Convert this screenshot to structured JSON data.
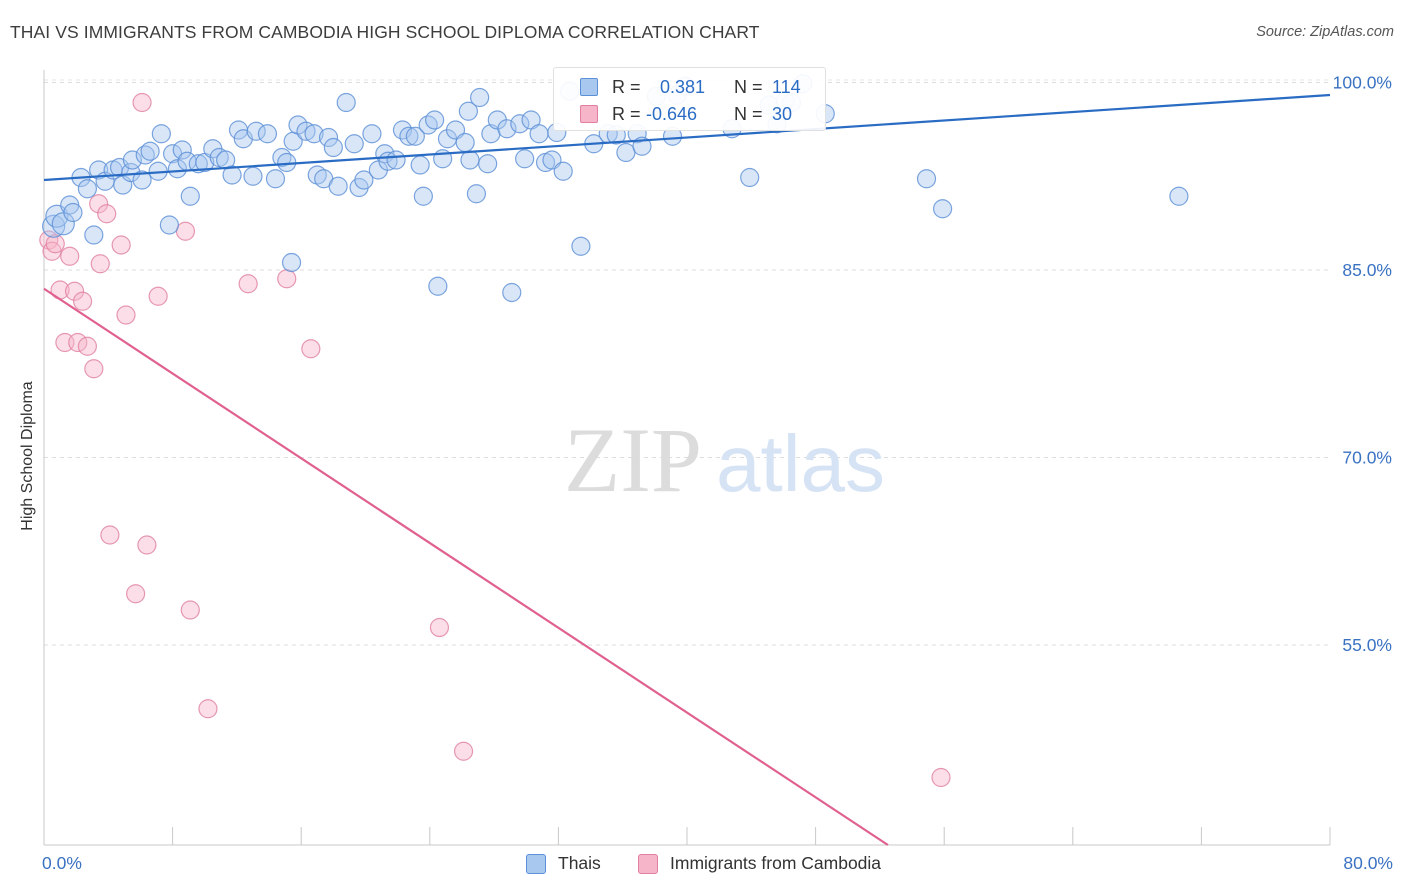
{
  "title": "THAI VS IMMIGRANTS FROM CAMBODIA HIGH SCHOOL DIPLOMA CORRELATION CHART",
  "source": "Source: ZipAtlas.com",
  "watermark": {
    "zip": "ZIP",
    "atlas": "atlas"
  },
  "legend": {
    "r_label": "R =",
    "n_label": "N =",
    "rows": [
      {
        "r": "0.381",
        "n": "114",
        "color": "#a9c8ef",
        "border": "#5b8fd6"
      },
      {
        "r": "-0.646",
        "n": "30",
        "color": "#f6b5c9",
        "border": "#e07fa0"
      }
    ]
  },
  "chart_data": {
    "type": "scatter",
    "xlabel": "",
    "ylabel": "High School Diploma",
    "xlim": [
      0,
      80
    ],
    "ylim": [
      39,
      101
    ],
    "x_tick_labels": [
      "0.0%",
      "80.0%"
    ],
    "y_ticks": [
      55,
      70,
      85,
      100
    ],
    "y_tick_labels": [
      "55.0%",
      "70.0%",
      "85.0%",
      "100.0%"
    ],
    "grid": "horizontal dashed",
    "legend_placement": "bottom-center",
    "series": [
      {
        "name": "Thais",
        "color": "#a9c8ef",
        "stroke": "#5b8fd6",
        "trend": {
          "x": [
            0,
            80
          ],
          "y": [
            92.2,
            99.0
          ],
          "color": "#2a6cc4"
        },
        "points": [
          [
            0.6,
            88.5
          ],
          [
            0.8,
            89.3
          ],
          [
            1.2,
            88.7
          ],
          [
            1.6,
            90.2
          ],
          [
            1.8,
            89.6
          ],
          [
            2.3,
            92.4
          ],
          [
            2.7,
            91.5
          ],
          [
            3.1,
            87.8
          ],
          [
            3.4,
            93.0
          ],
          [
            3.8,
            92.1
          ],
          [
            4.3,
            93.0
          ],
          [
            4.7,
            93.2
          ],
          [
            4.9,
            91.8
          ],
          [
            5.4,
            92.8
          ],
          [
            5.5,
            93.8
          ],
          [
            6.1,
            92.2
          ],
          [
            6.3,
            94.2
          ],
          [
            6.6,
            94.5
          ],
          [
            7.1,
            92.9
          ],
          [
            7.3,
            95.9
          ],
          [
            7.8,
            88.6
          ],
          [
            8.0,
            94.3
          ],
          [
            8.3,
            93.1
          ],
          [
            8.6,
            94.6
          ],
          [
            8.9,
            93.7
          ],
          [
            9.1,
            90.9
          ],
          [
            9.6,
            93.5
          ],
          [
            10.0,
            93.6
          ],
          [
            10.5,
            94.7
          ],
          [
            10.9,
            94.0
          ],
          [
            11.3,
            93.8
          ],
          [
            11.7,
            92.6
          ],
          [
            12.1,
            96.2
          ],
          [
            12.4,
            95.5
          ],
          [
            13.0,
            92.5
          ],
          [
            13.2,
            96.1
          ],
          [
            13.9,
            95.9
          ],
          [
            14.4,
            92.3
          ],
          [
            14.8,
            94.0
          ],
          [
            15.1,
            93.6
          ],
          [
            15.5,
            95.3
          ],
          [
            15.4,
            85.6
          ],
          [
            15.8,
            96.6
          ],
          [
            16.3,
            96.1
          ],
          [
            16.8,
            95.9
          ],
          [
            17.0,
            92.6
          ],
          [
            17.4,
            92.3
          ],
          [
            17.7,
            95.6
          ],
          [
            18.0,
            94.8
          ],
          [
            18.3,
            91.7
          ],
          [
            18.8,
            98.4
          ],
          [
            19.3,
            95.1
          ],
          [
            19.6,
            91.6
          ],
          [
            19.9,
            92.2
          ],
          [
            20.4,
            95.9
          ],
          [
            20.8,
            93.0
          ],
          [
            21.2,
            94.3
          ],
          [
            21.4,
            93.7
          ],
          [
            21.9,
            93.8
          ],
          [
            22.3,
            96.2
          ],
          [
            22.7,
            95.7
          ],
          [
            23.1,
            95.7
          ],
          [
            23.4,
            93.4
          ],
          [
            23.6,
            90.9
          ],
          [
            23.9,
            96.6
          ],
          [
            24.3,
            97.0
          ],
          [
            24.5,
            83.7
          ],
          [
            24.8,
            93.9
          ],
          [
            25.1,
            95.5
          ],
          [
            25.6,
            96.2
          ],
          [
            26.2,
            95.2
          ],
          [
            26.4,
            97.7
          ],
          [
            26.5,
            93.8
          ],
          [
            26.9,
            91.1
          ],
          [
            27.1,
            98.8
          ],
          [
            27.6,
            93.5
          ],
          [
            27.8,
            95.9
          ],
          [
            28.2,
            97.0
          ],
          [
            28.8,
            96.3
          ],
          [
            29.1,
            83.2
          ],
          [
            29.6,
            96.7
          ],
          [
            29.9,
            93.9
          ],
          [
            30.3,
            97.0
          ],
          [
            30.8,
            95.9
          ],
          [
            31.2,
            93.6
          ],
          [
            31.6,
            93.8
          ],
          [
            31.9,
            96.0
          ],
          [
            32.3,
            92.9
          ],
          [
            32.7,
            99.3
          ],
          [
            33.4,
            86.9
          ],
          [
            34.2,
            95.1
          ],
          [
            35.1,
            95.9
          ],
          [
            35.6,
            95.8
          ],
          [
            36.2,
            94.4
          ],
          [
            36.9,
            95.9
          ],
          [
            37.2,
            94.9
          ],
          [
            38.1,
            98.9
          ],
          [
            39.1,
            95.7
          ],
          [
            39.4,
            99.0
          ],
          [
            39.9,
            99.7
          ],
          [
            42.8,
            96.3
          ],
          [
            43.9,
            92.4
          ],
          [
            45.1,
            98.2
          ],
          [
            45.6,
            96.7
          ],
          [
            46.1,
            98.5
          ],
          [
            46.5,
            98.4
          ],
          [
            47.2,
            99.9
          ],
          [
            48.6,
            97.5
          ],
          [
            54.9,
            92.3
          ],
          [
            55.9,
            89.9
          ],
          [
            70.6,
            90.9
          ]
        ]
      },
      {
        "name": "Immigrants from Cambodia",
        "color": "#f6b5c9",
        "stroke": "#e07fa0",
        "trend": {
          "x": [
            0,
            52.5
          ],
          "y": [
            83.5,
            39.0
          ],
          "color": "#e0608f"
        },
        "points": [
          [
            0.3,
            87.4
          ],
          [
            0.5,
            86.5
          ],
          [
            0.7,
            87.1
          ],
          [
            1.0,
            83.4
          ],
          [
            1.3,
            79.2
          ],
          [
            1.6,
            86.1
          ],
          [
            1.9,
            83.3
          ],
          [
            2.1,
            79.2
          ],
          [
            2.4,
            82.5
          ],
          [
            2.7,
            78.9
          ],
          [
            3.1,
            77.1
          ],
          [
            3.4,
            90.3
          ],
          [
            3.5,
            85.5
          ],
          [
            3.9,
            89.5
          ],
          [
            4.1,
            63.8
          ],
          [
            4.8,
            87.0
          ],
          [
            5.1,
            81.4
          ],
          [
            5.7,
            59.1
          ],
          [
            6.1,
            98.4
          ],
          [
            6.4,
            63.0
          ],
          [
            7.1,
            82.9
          ],
          [
            8.8,
            88.1
          ],
          [
            9.1,
            57.8
          ],
          [
            10.2,
            49.9
          ],
          [
            12.7,
            83.9
          ],
          [
            15.1,
            84.3
          ],
          [
            16.6,
            78.7
          ],
          [
            24.6,
            56.4
          ],
          [
            26.1,
            46.5
          ],
          [
            55.8,
            44.4
          ]
        ]
      }
    ]
  }
}
